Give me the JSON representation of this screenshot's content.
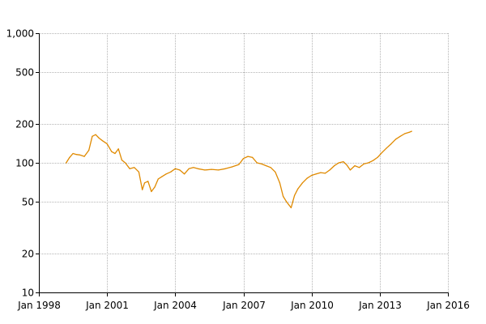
{
  "chart_data": {
    "type": "line",
    "title": "",
    "xlabel": "",
    "ylabel": "",
    "yscale": "log",
    "grid": true,
    "xlim": [
      1998.0,
      2016.0
    ],
    "ylim": [
      10,
      1000
    ],
    "x_ticks": [
      {
        "value": 1998.0,
        "label": "Jan 1998"
      },
      {
        "value": 2001.0,
        "label": "Jan 2001"
      },
      {
        "value": 2004.0,
        "label": "Jan 2004"
      },
      {
        "value": 2007.0,
        "label": "Jan 2007"
      },
      {
        "value": 2010.0,
        "label": "Jan 2010"
      },
      {
        "value": 2013.0,
        "label": "Jan 2013"
      },
      {
        "value": 2016.0,
        "label": "Jan 2016"
      }
    ],
    "y_ticks": [
      {
        "value": 10,
        "label": "10"
      },
      {
        "value": 20,
        "label": "20"
      },
      {
        "value": 50,
        "label": "50"
      },
      {
        "value": 100,
        "label": "100"
      },
      {
        "value": 200,
        "label": "200"
      },
      {
        "value": 500,
        "label": "500"
      },
      {
        "value": 1000,
        "label": "1,000"
      }
    ],
    "series": [
      {
        "color": "#e08a00",
        "x": [
          1999.2,
          1999.35,
          1999.5,
          1999.65,
          1999.8,
          2000.0,
          2000.2,
          2000.35,
          2000.5,
          2000.65,
          2000.8,
          2001.0,
          2001.2,
          2001.35,
          2001.5,
          2001.65,
          2001.8,
          2002.0,
          2002.2,
          2002.4,
          2002.55,
          2002.65,
          2002.8,
          2002.95,
          2003.1,
          2003.25,
          2003.4,
          2003.6,
          2003.8,
          2004.0,
          2004.2,
          2004.4,
          2004.6,
          2004.8,
          2005.0,
          2005.3,
          2005.6,
          2005.9,
          2006.2,
          2006.5,
          2006.8,
          2007.0,
          2007.2,
          2007.4,
          2007.6,
          2007.8,
          2008.0,
          2008.2,
          2008.4,
          2008.6,
          2008.75,
          2008.9,
          2009.1,
          2009.25,
          2009.4,
          2009.6,
          2009.8,
          2010.0,
          2010.2,
          2010.4,
          2010.6,
          2010.8,
          2011.0,
          2011.2,
          2011.4,
          2011.55,
          2011.7,
          2011.9,
          2012.1,
          2012.3,
          2012.5,
          2012.7,
          2012.9,
          2013.1,
          2013.3,
          2013.5,
          2013.7,
          2013.9,
          2014.1,
          2014.3,
          2014.4
        ],
        "y": [
          100,
          110,
          118,
          116,
          115,
          112,
          125,
          160,
          165,
          155,
          148,
          140,
          122,
          118,
          128,
          105,
          100,
          90,
          92,
          85,
          62,
          70,
          72,
          60,
          65,
          75,
          78,
          82,
          85,
          90,
          88,
          82,
          90,
          92,
          90,
          88,
          89,
          88,
          90,
          93,
          97,
          108,
          112,
          110,
          100,
          98,
          95,
          92,
          85,
          70,
          55,
          50,
          45,
          56,
          63,
          70,
          76,
          80,
          82,
          84,
          83,
          88,
          95,
          100,
          102,
          96,
          88,
          95,
          92,
          98,
          100,
          104,
          110,
          120,
          130,
          140,
          152,
          160,
          168,
          172,
          175
        ]
      }
    ]
  }
}
